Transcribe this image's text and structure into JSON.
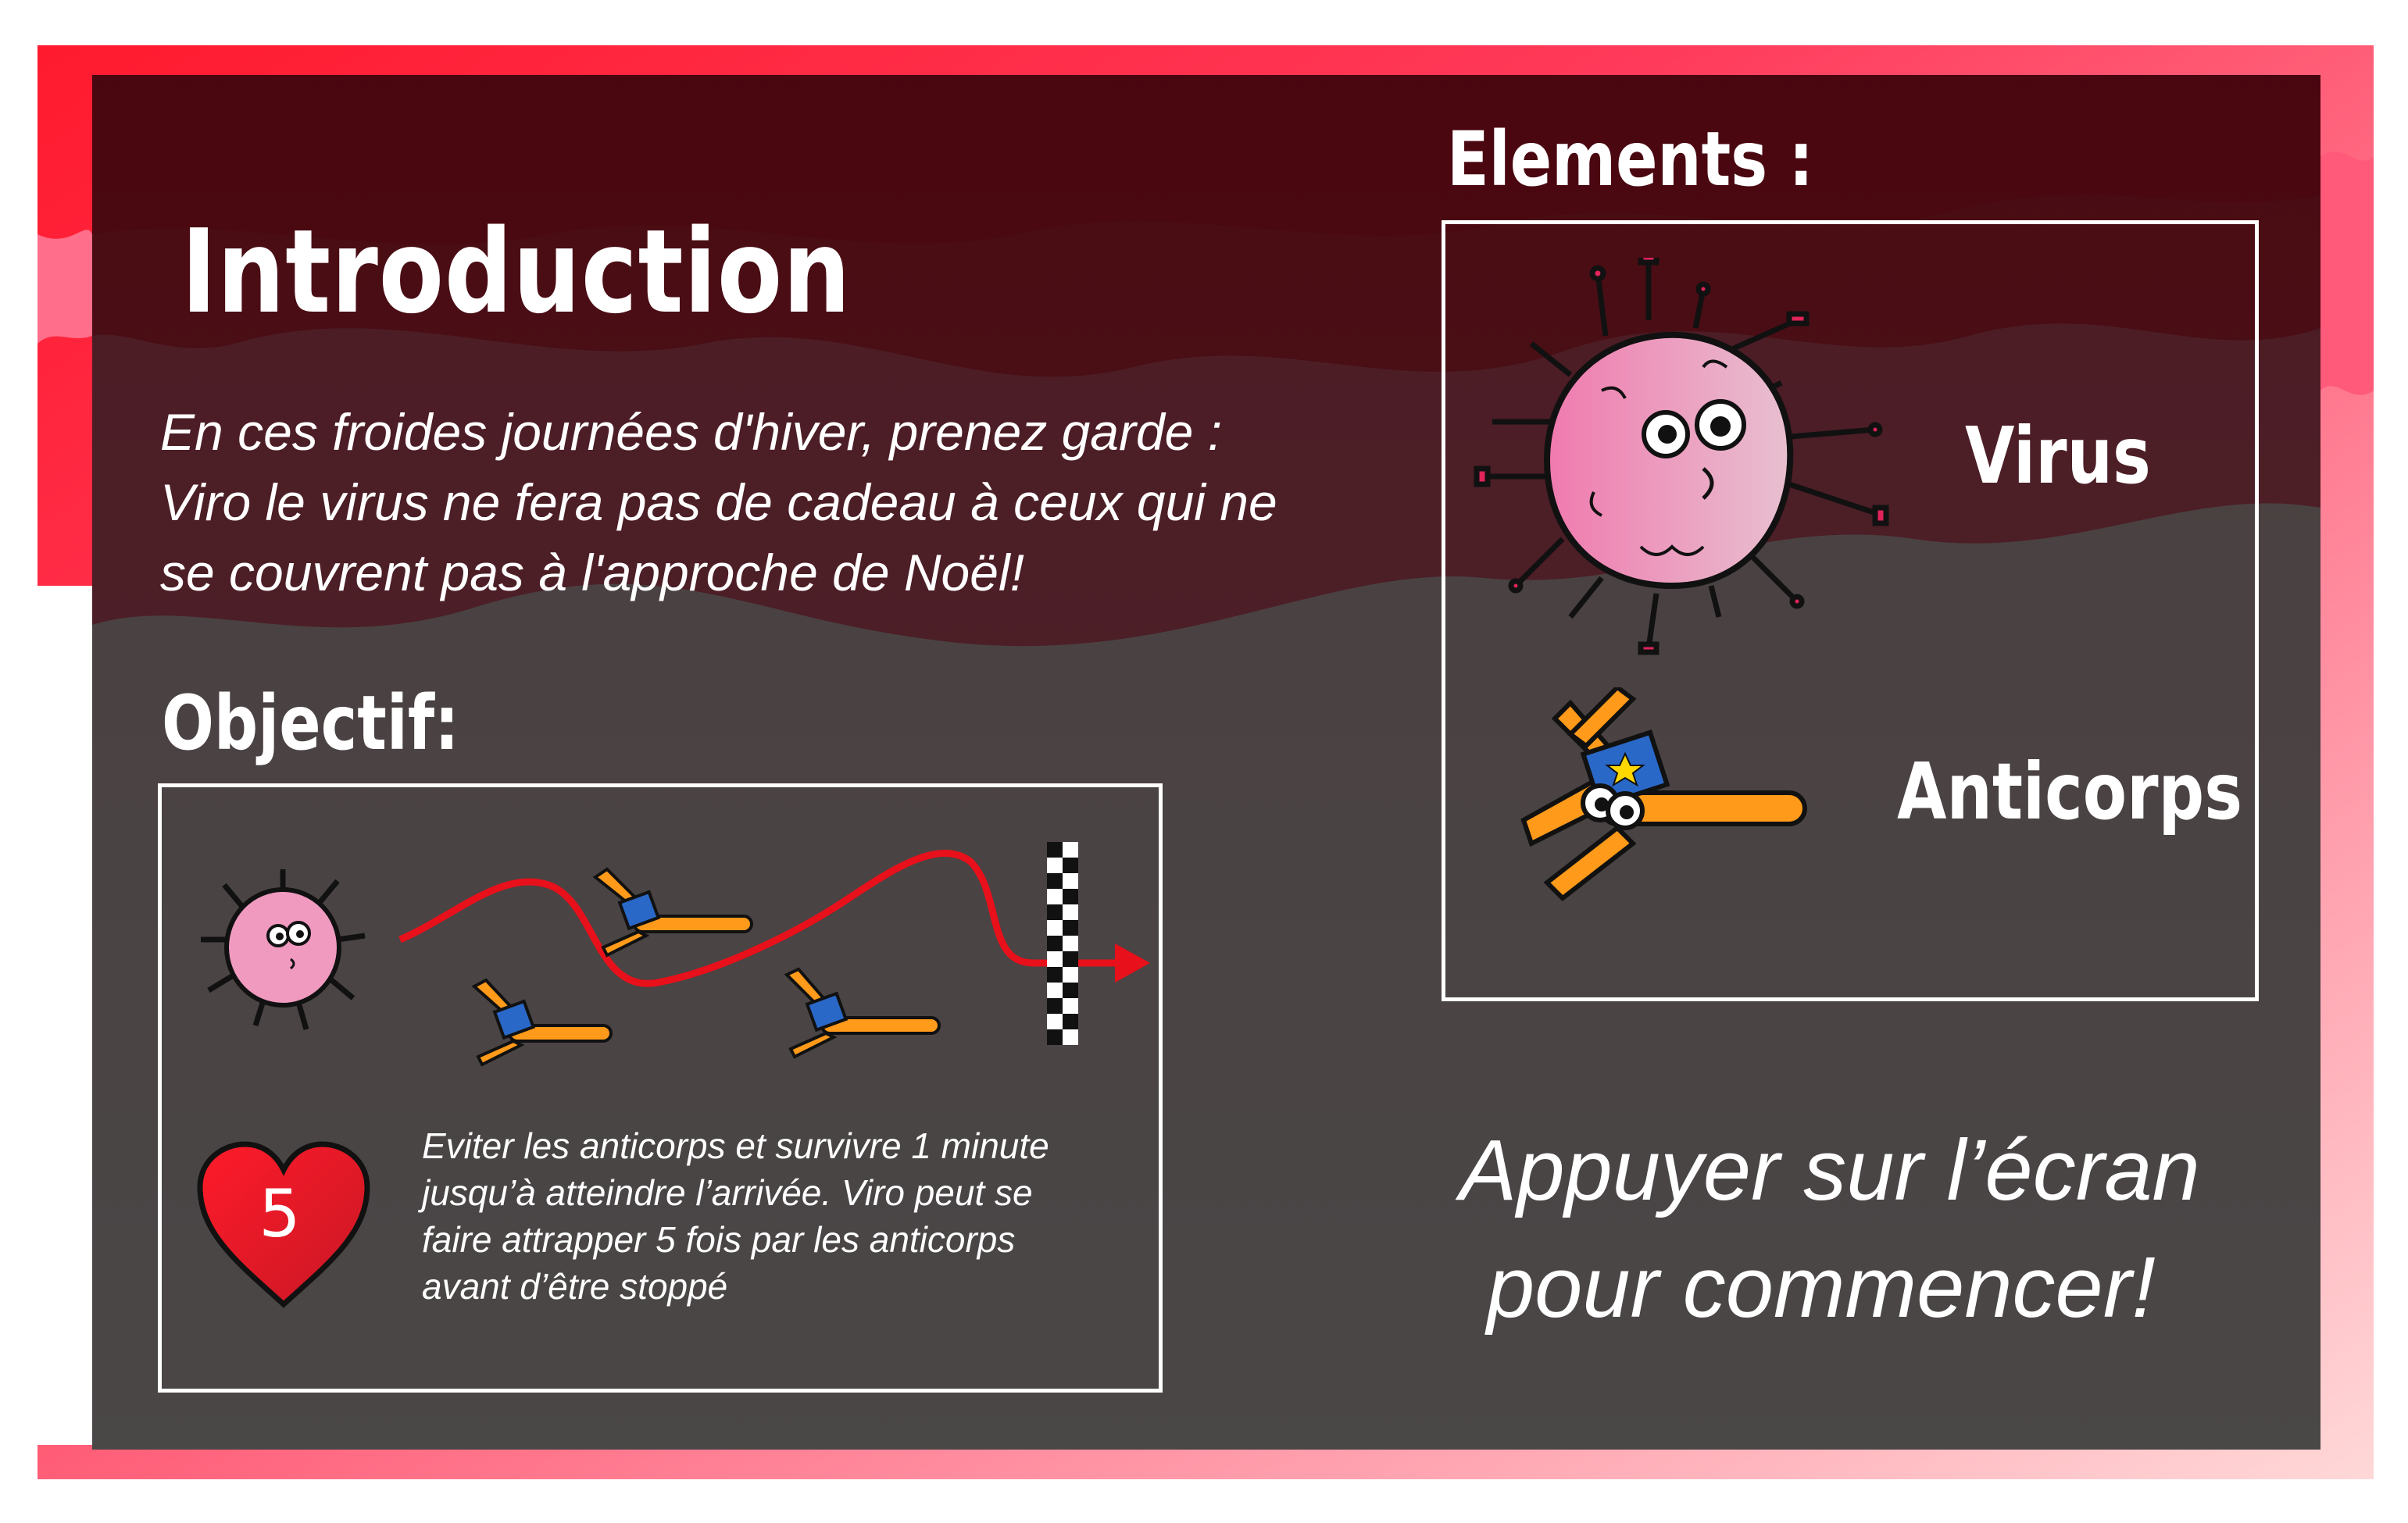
{
  "intro": {
    "title": "Introduction",
    "lines": [
      "En ces froides journées d'hiver, prenez garde :",
      "Viro le virus ne fera pas de cadeau à ceux qui ne",
      "se couvrent pas à l'approche de Noël!"
    ]
  },
  "objective": {
    "title": "Objectif:",
    "lives": "5",
    "description_lines": [
      "Eviter les anticorps et survivre 1 minute",
      "jusqu’à atteindre l’arrivée. Viro peut se",
      "faire attrapper 5 fois par les anticorps",
      "avant d’être stoppé"
    ]
  },
  "elements": {
    "title": "Elements :",
    "virus_label": "Virus",
    "antibody_label": "Anticorps"
  },
  "start_prompt": {
    "lines": [
      "Appuyer sur l’écran",
      "pour commencer!"
    ]
  },
  "colors": {
    "frame_red": "#ff1f35",
    "dark_red": "#4c0810",
    "panel_gray": "#4b4848",
    "virus_pink": "#f08cb8",
    "antibody_orange": "#ff9a1a",
    "heart_red": "#e01420"
  }
}
